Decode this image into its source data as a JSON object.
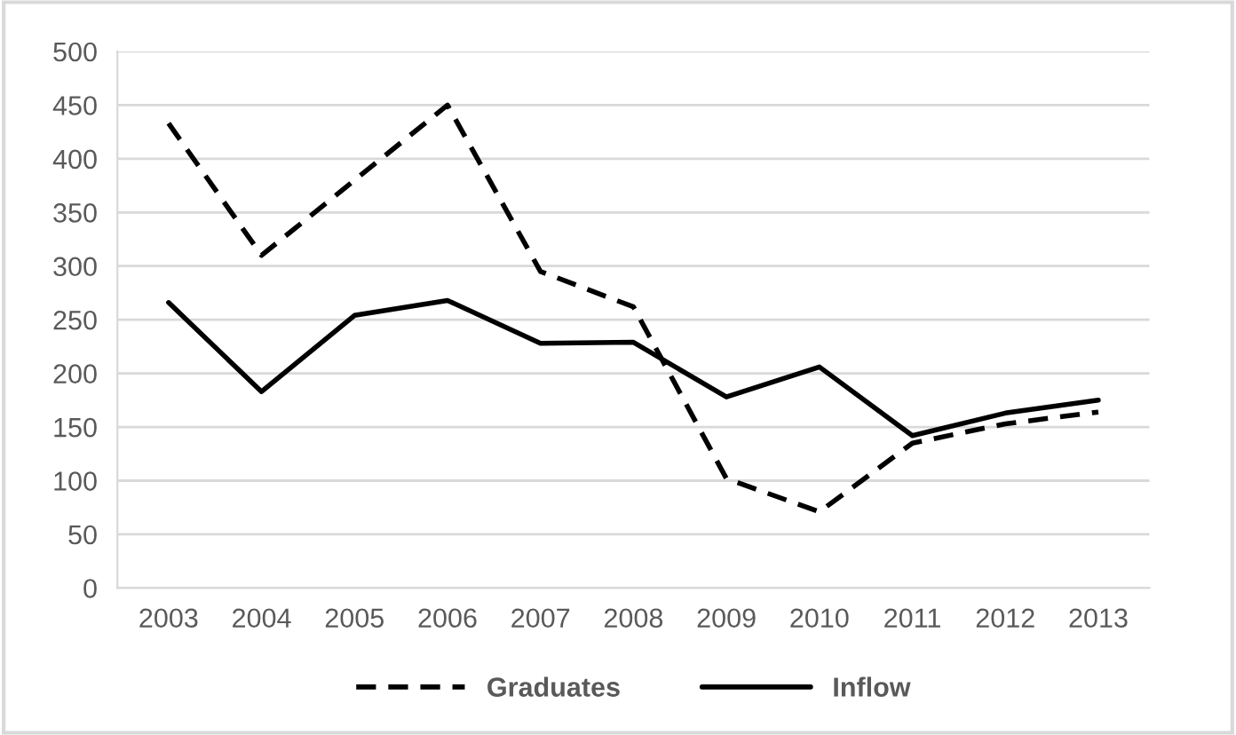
{
  "chart_data": {
    "type": "line",
    "categories": [
      "2003",
      "2004",
      "2005",
      "2006",
      "2007",
      "2008",
      "2009",
      "2010",
      "2011",
      "2012",
      "2013"
    ],
    "series": [
      {
        "name": "Graduates",
        "color": "#000000",
        "line_style": "dashed",
        "values": [
          433,
          310,
          380,
          450,
          295,
          262,
          102,
          71,
          135,
          153,
          164
        ]
      },
      {
        "name": "Inflow",
        "color": "#000000",
        "line_style": "solid",
        "values": [
          266,
          183,
          254,
          268,
          228,
          229,
          178,
          206,
          142,
          163,
          175
        ]
      }
    ],
    "ylim": [
      0,
      500
    ],
    "yticks": [
      0,
      50,
      100,
      150,
      200,
      250,
      300,
      350,
      400,
      450,
      500
    ],
    "grid": "y",
    "legend": "bottom",
    "marker": "none"
  }
}
